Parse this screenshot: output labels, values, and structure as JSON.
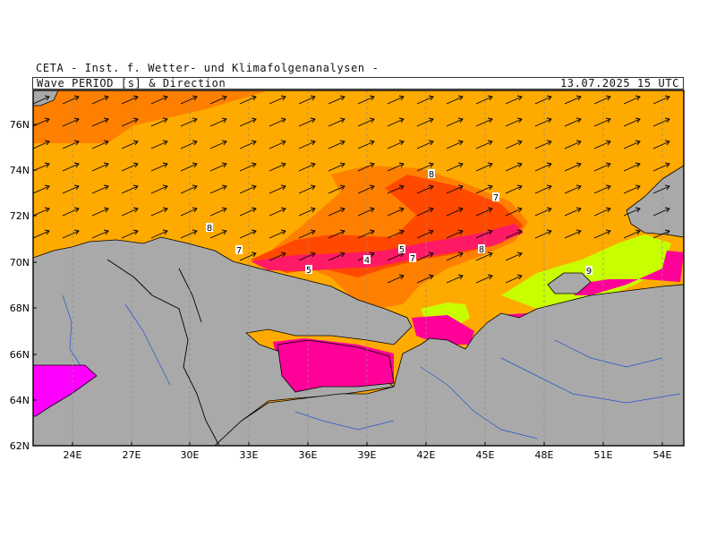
{
  "header": {
    "institute": "CETA - Inst. f. Wetter- und Klimafolgenanalysen -",
    "title": "Wave PERIOD [s] & Direction",
    "datetime": "13.07.2025 15 UTC"
  },
  "axes": {
    "lat_labels": [
      "76N",
      "74N",
      "72N",
      "70N",
      "68N",
      "66N",
      "64N",
      "62N"
    ],
    "lon_labels": [
      "24E",
      "27E",
      "30E",
      "33E",
      "36E",
      "39E",
      "42E",
      "45E",
      "48E",
      "51E",
      "54E"
    ]
  },
  "contour_labels": [
    "8",
    "7",
    "8",
    "7",
    "5",
    "4",
    "5",
    "7",
    "8",
    "9",
    "8",
    "7"
  ],
  "colors": {
    "land": "#a9a9a9",
    "period_9_10": "#c8ff00",
    "period_8_9": "#ffaa00",
    "period_7_8": "#ff8000",
    "period_6_7": "#ff4800",
    "period_5_6": "#ff1a66",
    "period_4_5": "#ff0099",
    "period_lt4": "#ff00ff",
    "arrows": "#000000",
    "coast_lines": "#000000",
    "rivers": "#2255cc"
  }
}
